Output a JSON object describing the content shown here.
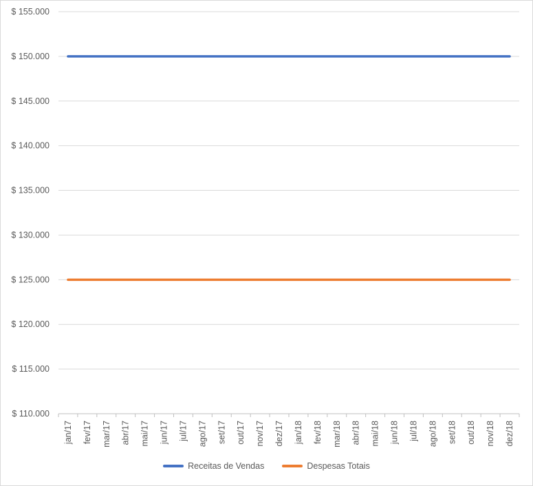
{
  "chart_data": {
    "type": "line",
    "categories": [
      "jan/17",
      "fev/17",
      "mar/17",
      "abr/17",
      "mai/17",
      "jun/17",
      "jul/17",
      "ago/17",
      "set/17",
      "out/17",
      "nov/17",
      "dez/17",
      "jan/18",
      "fev/18",
      "mar/18",
      "abr/18",
      "mai/18",
      "jun/18",
      "jul/18",
      "ago/18",
      "set/18",
      "out/18",
      "nov/18",
      "dez/18"
    ],
    "series": [
      {
        "name": "Receitas de Vendas",
        "color": "#4472c4",
        "values": [
          150000,
          150000,
          150000,
          150000,
          150000,
          150000,
          150000,
          150000,
          150000,
          150000,
          150000,
          150000,
          150000,
          150000,
          150000,
          150000,
          150000,
          150000,
          150000,
          150000,
          150000,
          150000,
          150000,
          150000
        ]
      },
      {
        "name": "Despesas Totais",
        "color": "#ed7d31",
        "values": [
          125000,
          125000,
          125000,
          125000,
          125000,
          125000,
          125000,
          125000,
          125000,
          125000,
          125000,
          125000,
          125000,
          125000,
          125000,
          125000,
          125000,
          125000,
          125000,
          125000,
          125000,
          125000,
          125000,
          125000
        ]
      }
    ],
    "ylim": [
      110000,
      155000
    ],
    "yticks": [
      "$ 110.000",
      "$ 115.000",
      "$ 120.000",
      "$ 125.000",
      "$ 130.000",
      "$ 135.000",
      "$ 140.000",
      "$ 145.000",
      "$ 150.000",
      "$ 155.000"
    ],
    "grid": true,
    "legend_position": "bottom",
    "title": "",
    "xlabel": "",
    "ylabel": ""
  }
}
